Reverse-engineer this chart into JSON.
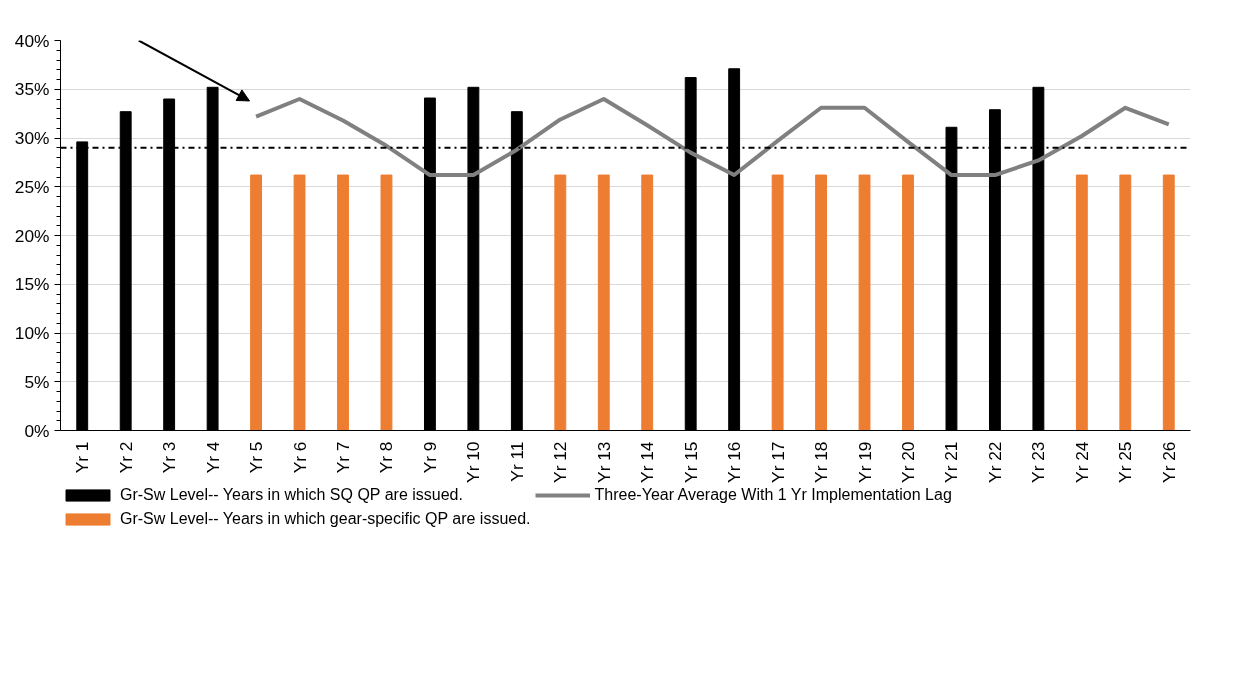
{
  "chart_data": {
    "type": "bar",
    "categories": [
      "Yr 1",
      "Yr 2",
      "Yr 3",
      "Yr 4",
      "Yr 5",
      "Yr 6",
      "Yr 7",
      "Yr 8",
      "Yr 9",
      "Yr 10",
      "Yr 11",
      "Yr 12",
      "Yr 13",
      "Yr 14",
      "Yr 15",
      "Yr 16",
      "Yr 17",
      "Yr 18",
      "Yr 19",
      "Yr 20",
      "Yr 21",
      "Yr 22",
      "Yr 23",
      "Yr 24",
      "Yr 25",
      "Yr 26"
    ],
    "series": [
      {
        "name": "Gr-Sw Level-- Years in which SQ QP are issued.",
        "color": "#000000",
        "values": [
          29.6,
          32.7,
          34.0,
          35.2,
          null,
          null,
          null,
          null,
          34.1,
          35.2,
          32.7,
          null,
          null,
          null,
          36.2,
          37.1,
          null,
          null,
          null,
          null,
          31.1,
          32.9,
          35.2,
          null,
          null,
          null
        ]
      },
      {
        "name": "Gr-Sw Level-- Years in which gear-specific QP are issued.",
        "color": "#ed7d31",
        "values": [
          null,
          null,
          null,
          null,
          26.2,
          26.2,
          26.2,
          26.2,
          null,
          null,
          null,
          26.2,
          26.2,
          26.2,
          null,
          null,
          26.2,
          26.2,
          26.2,
          26.2,
          null,
          null,
          null,
          26.2,
          26.2,
          26.2
        ]
      },
      {
        "name": "Three-Year Average With 1 Yr Implementation Lag",
        "type": "line",
        "color": "#808080",
        "values": [
          null,
          null,
          null,
          null,
          32.2,
          34.0,
          31.8,
          29.2,
          26.2,
          26.2,
          28.8,
          31.9,
          34.0,
          31.3,
          28.5,
          26.2,
          29.7,
          33.1,
          33.1,
          29.6,
          26.2,
          26.2,
          27.7,
          30.2,
          33.1,
          31.4
        ]
      }
    ],
    "ylim": [
      0,
      40
    ],
    "yticks": [
      {
        "value": 0,
        "label": "0%"
      },
      {
        "value": 5,
        "label": "5%"
      },
      {
        "value": 10,
        "label": "10%"
      },
      {
        "value": 15,
        "label": "15%"
      },
      {
        "value": 20,
        "label": "20%"
      },
      {
        "value": 25,
        "label": "25%"
      },
      {
        "value": 30,
        "label": "30%"
      },
      {
        "value": 35,
        "label": "35%"
      },
      {
        "value": 40,
        "label": "40%"
      }
    ],
    "ref_lines": [
      {
        "axis": "y",
        "value": 29,
        "label": null,
        "color": "#000000",
        "line_style": "dashdot"
      }
    ],
    "grid": "y",
    "legend": "bottom",
    "marker": "none",
    "line_style": "solid"
  }
}
